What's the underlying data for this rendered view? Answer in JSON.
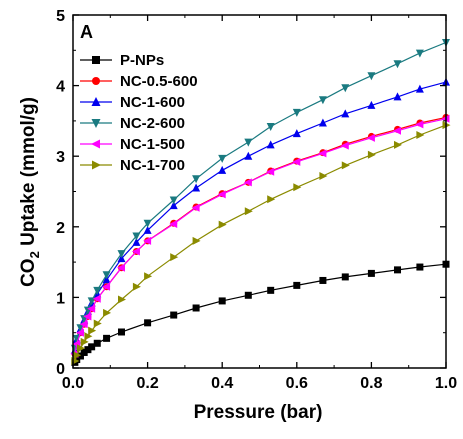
{
  "chart_data": {
    "type": "line",
    "panel_label": "A",
    "xlabel": "Pressure (bar)",
    "ylabel_parts": [
      "CO",
      "2",
      " Uptake (mmol/g)"
    ],
    "xlim": [
      0,
      1.0
    ],
    "ylim": [
      0,
      5
    ],
    "xticks": [
      0.0,
      0.2,
      0.4,
      0.6,
      0.8,
      1.0
    ],
    "xtick_labels": [
      "0.0",
      "0.2",
      "0.4",
      "0.6",
      "0.8",
      "1.0"
    ],
    "yticks": [
      0,
      1,
      2,
      3,
      4,
      5
    ],
    "ytick_labels": [
      "0",
      "1",
      "2",
      "3",
      "4",
      "5"
    ],
    "grid": false,
    "legend_position": "top-left",
    "series": [
      {
        "name": "P-NPs",
        "color": "#000000",
        "marker": "square",
        "x": [
          0.005,
          0.01,
          0.02,
          0.03,
          0.04,
          0.05,
          0.065,
          0.09,
          0.13,
          0.2,
          0.27,
          0.33,
          0.4,
          0.47,
          0.53,
          0.6,
          0.67,
          0.73,
          0.8,
          0.87,
          0.93,
          1.0
        ],
        "y": [
          0.08,
          0.12,
          0.17,
          0.22,
          0.26,
          0.3,
          0.35,
          0.42,
          0.51,
          0.64,
          0.75,
          0.85,
          0.95,
          1.03,
          1.1,
          1.17,
          1.24,
          1.29,
          1.34,
          1.39,
          1.43,
          1.47
        ]
      },
      {
        "name": "NC-0.5-600",
        "color": "#ff0000",
        "marker": "circle",
        "x": [
          0.005,
          0.01,
          0.02,
          0.03,
          0.04,
          0.05,
          0.065,
          0.09,
          0.13,
          0.17,
          0.2,
          0.27,
          0.33,
          0.4,
          0.47,
          0.53,
          0.6,
          0.67,
          0.73,
          0.8,
          0.87,
          0.93,
          1.0
        ],
        "y": [
          0.2,
          0.35,
          0.5,
          0.62,
          0.73,
          0.84,
          0.98,
          1.15,
          1.42,
          1.65,
          1.8,
          2.05,
          2.28,
          2.47,
          2.63,
          2.79,
          2.93,
          3.05,
          3.17,
          3.28,
          3.38,
          3.47,
          3.55
        ]
      },
      {
        "name": "NC-1-600",
        "color": "#0000ee",
        "marker": "triangle-up",
        "x": [
          0.005,
          0.01,
          0.02,
          0.03,
          0.04,
          0.05,
          0.065,
          0.09,
          0.13,
          0.17,
          0.2,
          0.27,
          0.33,
          0.4,
          0.47,
          0.53,
          0.6,
          0.67,
          0.73,
          0.8,
          0.87,
          0.93,
          1.0
        ],
        "y": [
          0.25,
          0.4,
          0.55,
          0.68,
          0.8,
          0.92,
          1.05,
          1.25,
          1.55,
          1.78,
          1.95,
          2.3,
          2.55,
          2.8,
          3.0,
          3.16,
          3.32,
          3.47,
          3.6,
          3.72,
          3.84,
          3.95,
          4.05
        ]
      },
      {
        "name": "NC-2-600",
        "color": "#1a7a80",
        "marker": "triangle-down",
        "x": [
          0.005,
          0.01,
          0.02,
          0.03,
          0.04,
          0.05,
          0.065,
          0.09,
          0.13,
          0.17,
          0.2,
          0.27,
          0.33,
          0.4,
          0.47,
          0.53,
          0.6,
          0.67,
          0.73,
          0.8,
          0.87,
          0.93,
          1.0
        ],
        "y": [
          0.28,
          0.42,
          0.57,
          0.7,
          0.82,
          0.95,
          1.1,
          1.32,
          1.62,
          1.87,
          2.05,
          2.38,
          2.68,
          2.97,
          3.2,
          3.42,
          3.62,
          3.8,
          3.97,
          4.14,
          4.31,
          4.46,
          4.61
        ]
      },
      {
        "name": "NC-1-500",
        "color": "#ff00ff",
        "marker": "triangle-left",
        "x": [
          0.005,
          0.01,
          0.02,
          0.03,
          0.04,
          0.05,
          0.065,
          0.09,
          0.13,
          0.17,
          0.2,
          0.27,
          0.33,
          0.4,
          0.47,
          0.53,
          0.6,
          0.67,
          0.73,
          0.8,
          0.87,
          0.93,
          1.0
        ],
        "y": [
          0.2,
          0.34,
          0.5,
          0.62,
          0.73,
          0.84,
          0.98,
          1.15,
          1.42,
          1.65,
          1.8,
          2.04,
          2.27,
          2.46,
          2.63,
          2.78,
          2.92,
          3.04,
          3.15,
          3.26,
          3.36,
          3.45,
          3.53
        ]
      },
      {
        "name": "NC-1-700",
        "color": "#8b8b00",
        "marker": "triangle-right",
        "x": [
          0.005,
          0.01,
          0.02,
          0.03,
          0.04,
          0.05,
          0.065,
          0.09,
          0.13,
          0.17,
          0.2,
          0.27,
          0.33,
          0.4,
          0.47,
          0.53,
          0.6,
          0.67,
          0.73,
          0.8,
          0.87,
          0.93,
          1.0
        ],
        "y": [
          0.1,
          0.18,
          0.28,
          0.37,
          0.45,
          0.53,
          0.63,
          0.78,
          0.97,
          1.15,
          1.3,
          1.57,
          1.8,
          2.03,
          2.22,
          2.39,
          2.56,
          2.72,
          2.87,
          3.02,
          3.16,
          3.3,
          3.44
        ]
      }
    ]
  }
}
